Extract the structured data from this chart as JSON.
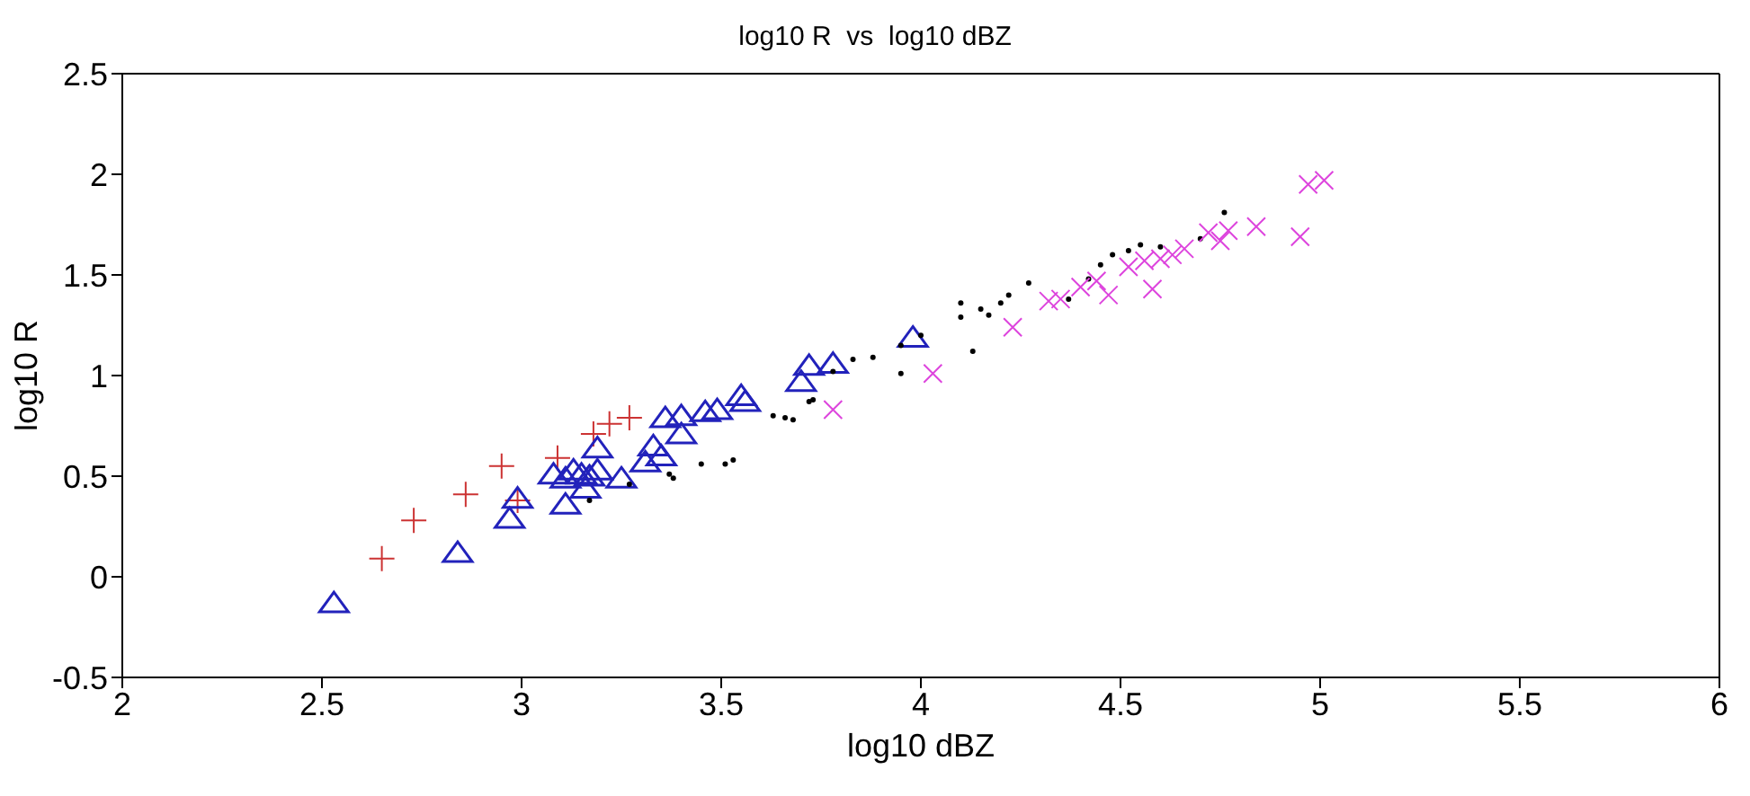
{
  "chart_data": {
    "type": "scatter",
    "title": "log10 R  vs  log10 dBZ",
    "xlabel": "log10 dBZ",
    "ylabel": "log10 R",
    "xlim": [
      2,
      6
    ],
    "ylim": [
      -0.5,
      2.5
    ],
    "xticks": [
      2,
      2.5,
      3,
      3.5,
      4,
      4.5,
      5,
      5.5,
      6
    ],
    "yticks": [
      -0.5,
      0,
      0.5,
      1,
      1.5,
      2,
      2.5
    ],
    "series": [
      {
        "color": "#cc3333",
        "marker": "cross",
        "x": [
          2.65,
          2.73,
          2.86,
          2.95,
          2.99,
          3.09,
          3.18,
          3.22,
          3.27
        ],
        "values": [
          0.09,
          0.28,
          0.41,
          0.55,
          0.38,
          0.59,
          0.71,
          0.76,
          0.79
        ]
      },
      {
        "color": "#2222bb",
        "marker": "triangle",
        "x": [
          2.53,
          2.84,
          2.97,
          2.99,
          3.08,
          3.11,
          3.11,
          3.13,
          3.15,
          3.16,
          3.17,
          3.19,
          3.19,
          3.25,
          3.31,
          3.33,
          3.35,
          3.36,
          3.4,
          3.4,
          3.46,
          3.49,
          3.55,
          3.56,
          3.7,
          3.72,
          3.78,
          3.98
        ],
        "values": [
          -0.13,
          0.12,
          0.29,
          0.39,
          0.51,
          0.36,
          0.49,
          0.53,
          0.51,
          0.44,
          0.5,
          0.53,
          0.64,
          0.49,
          0.57,
          0.65,
          0.6,
          0.79,
          0.8,
          0.71,
          0.82,
          0.83,
          0.9,
          0.87,
          0.97,
          1.05,
          1.06,
          1.19
        ]
      },
      {
        "color": "#000000",
        "marker": "circle",
        "x": [
          3.17,
          3.27,
          3.37,
          3.38,
          3.45,
          3.51,
          3.53,
          3.63,
          3.66,
          3.68,
          3.72,
          3.73,
          3.78,
          3.83,
          3.88,
          3.95,
          3.95,
          4.0,
          4.1,
          4.1,
          4.13,
          4.15,
          4.17,
          4.2,
          4.22,
          4.27,
          4.37,
          4.42,
          4.45,
          4.48,
          4.52,
          4.55,
          4.6,
          4.7,
          4.76
        ],
        "values": [
          0.38,
          0.46,
          0.51,
          0.49,
          0.56,
          0.56,
          0.58,
          0.8,
          0.79,
          0.78,
          0.87,
          0.88,
          1.02,
          1.08,
          1.09,
          1.01,
          1.15,
          1.2,
          1.36,
          1.29,
          1.12,
          1.33,
          1.3,
          1.36,
          1.4,
          1.46,
          1.38,
          1.48,
          1.55,
          1.6,
          1.62,
          1.65,
          1.64,
          1.68,
          1.81
        ]
      },
      {
        "color": "#dd44dd",
        "marker": "x",
        "x": [
          3.78,
          4.03,
          4.23,
          4.32,
          4.35,
          4.4,
          4.44,
          4.47,
          4.52,
          4.56,
          4.58,
          4.6,
          4.63,
          4.66,
          4.72,
          4.75,
          4.77,
          4.84,
          4.95,
          4.97,
          5.01
        ],
        "values": [
          0.83,
          1.01,
          1.24,
          1.37,
          1.38,
          1.44,
          1.47,
          1.4,
          1.54,
          1.57,
          1.43,
          1.58,
          1.6,
          1.63,
          1.71,
          1.67,
          1.72,
          1.74,
          1.69,
          1.95,
          1.97
        ]
      }
    ]
  }
}
